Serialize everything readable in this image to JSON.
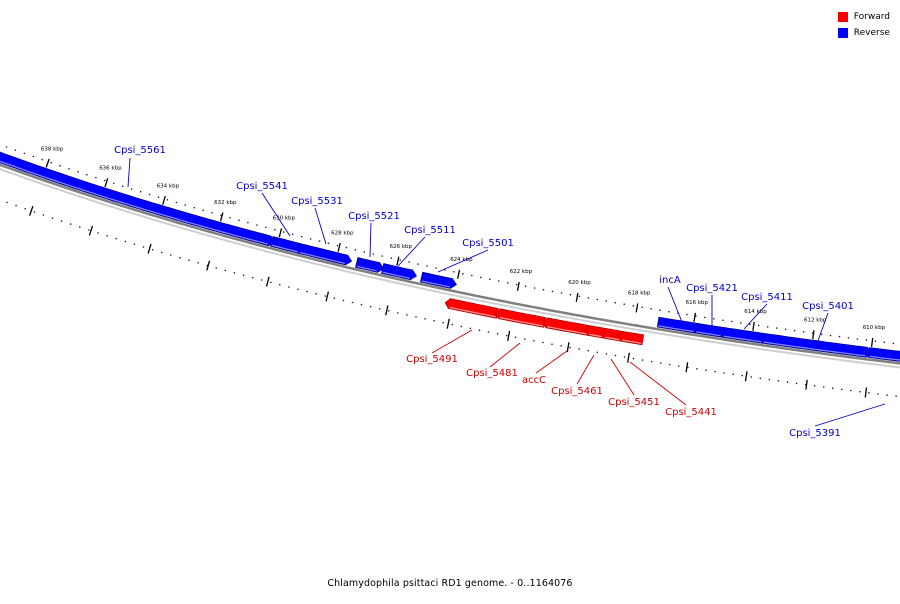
{
  "legend": {
    "forward_label": "Forward",
    "reverse_label": "Reverse",
    "forward_color": "#ff0000",
    "reverse_color": "#0000ff"
  },
  "caption": "Chlamydophila psittaci RD1 genome. - 0..1164076",
  "colors": {
    "forward": "#ff0000",
    "reverse": "#0000ff",
    "backbone": "#808080"
  },
  "tick_labels": [
    "638 kbp",
    "636 kbp",
    "634 kbp",
    "632 kbp",
    "630 kbp",
    "628 kbp",
    "626 kbp",
    "624 kbp",
    "622 kbp",
    "620 kbp",
    "618 kbp",
    "616 kbp",
    "614 kbp",
    "612 kbp",
    "610 kbp"
  ],
  "genes": [
    {
      "name": "Cpsi_5561",
      "strand": "reverse"
    },
    {
      "name": "Cpsi_5541",
      "strand": "reverse"
    },
    {
      "name": "Cpsi_5531",
      "strand": "reverse"
    },
    {
      "name": "Cpsi_5521",
      "strand": "reverse"
    },
    {
      "name": "Cpsi_5511",
      "strand": "reverse"
    },
    {
      "name": "Cpsi_5501",
      "strand": "reverse"
    },
    {
      "name": "incA",
      "strand": "reverse"
    },
    {
      "name": "Cpsi_5421",
      "strand": "reverse"
    },
    {
      "name": "Cpsi_5411",
      "strand": "reverse"
    },
    {
      "name": "Cpsi_5401",
      "strand": "reverse"
    },
    {
      "name": "Cpsi_5391",
      "strand": "reverse"
    },
    {
      "name": "Cpsi_5491",
      "strand": "forward"
    },
    {
      "name": "Cpsi_5481",
      "strand": "forward"
    },
    {
      "name": "accC",
      "strand": "forward"
    },
    {
      "name": "Cpsi_5461",
      "strand": "forward"
    },
    {
      "name": "Cpsi_5451",
      "strand": "forward"
    },
    {
      "name": "Cpsi_5441",
      "strand": "forward"
    }
  ]
}
